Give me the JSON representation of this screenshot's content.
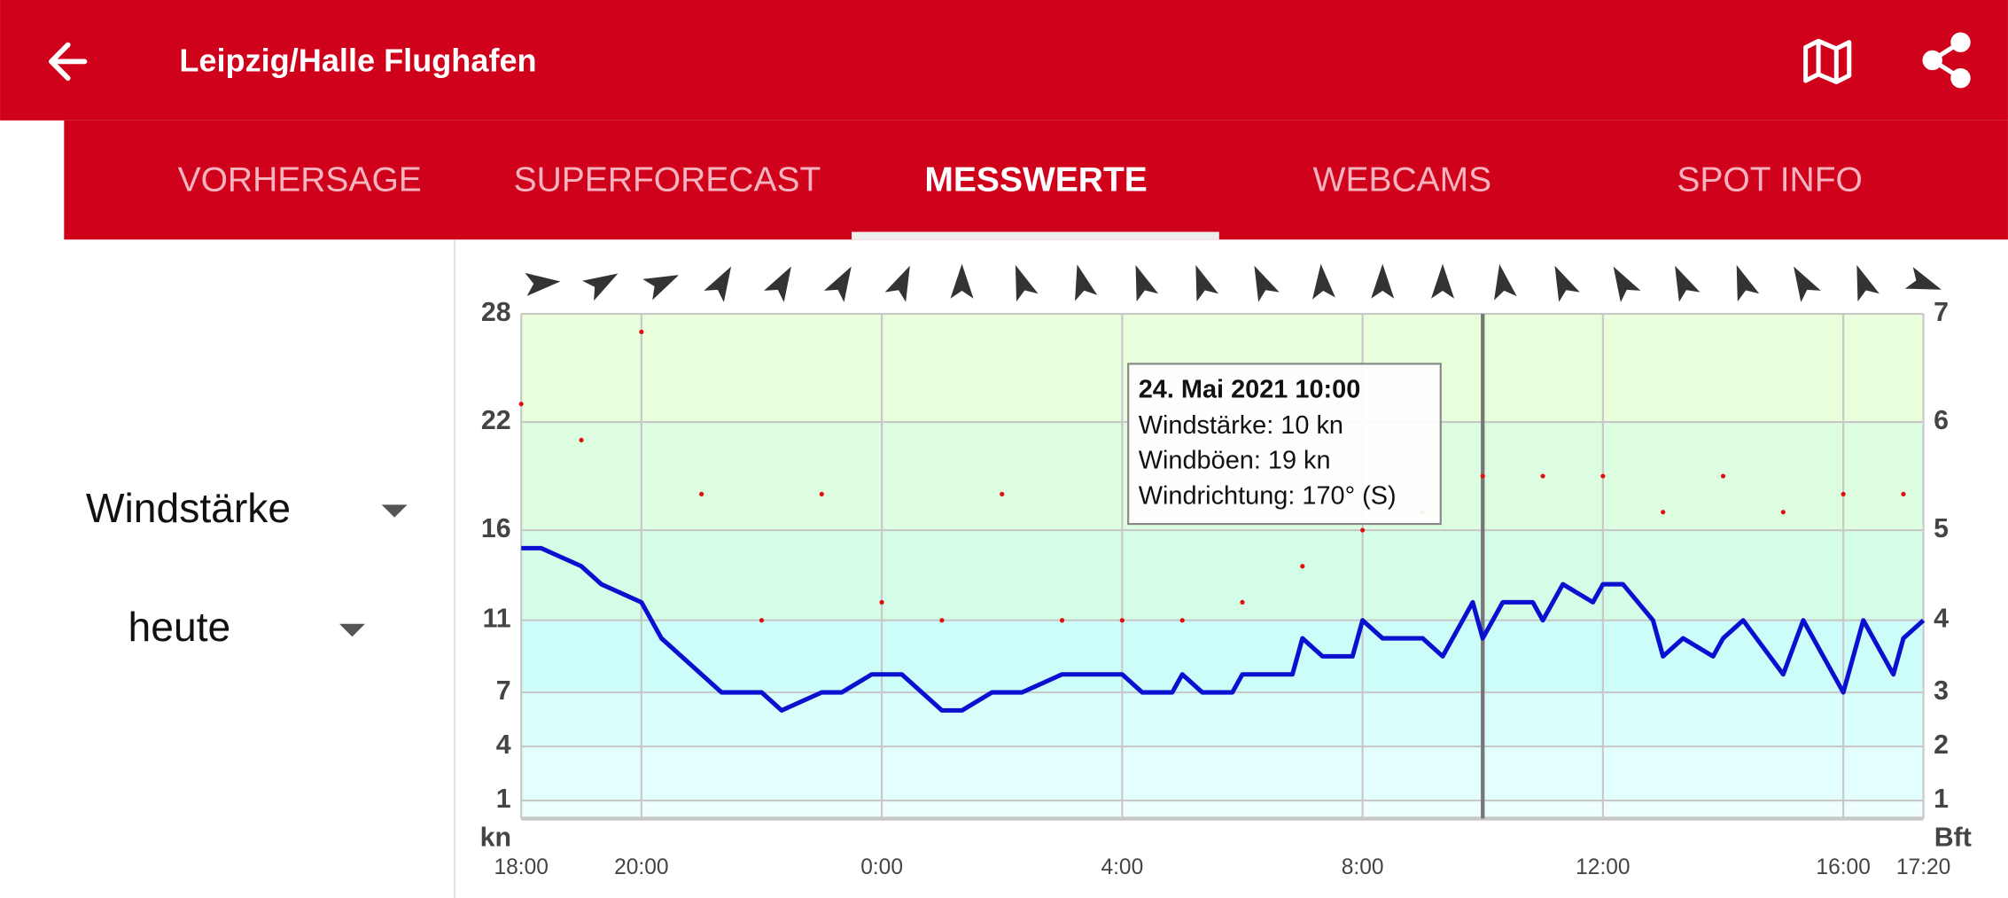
{
  "header": {
    "title": "Leipzig/Halle Flughafen"
  },
  "tabs": {
    "items": [
      "VORHERSAGE",
      "SUPERFORECAST",
      "MESSWERTE",
      "WEBCAMS",
      "SPOT INFO"
    ],
    "active": 2
  },
  "selectors": {
    "parameter": "Windstärke",
    "period": "heute"
  },
  "chart_data": {
    "type": "line",
    "y_unit": "kn",
    "y2_unit": "Bft",
    "xlim": [
      "18:00",
      "17:20"
    ],
    "xticks": [
      "18:00",
      "20:00",
      "0:00",
      "4:00",
      "8:00",
      "12:00",
      "16:00",
      "17:20"
    ],
    "ylim": [
      0,
      28
    ],
    "yticks": [
      28,
      22,
      16,
      11,
      7,
      4,
      1
    ],
    "y2ticks": [
      7,
      6,
      5,
      4,
      3,
      2,
      1
    ],
    "grid": true,
    "band_colors": [
      "#effffe",
      "#e3fffd",
      "#d8fffc",
      "#cdfdf9",
      "#d3fde6",
      "#ddfde0",
      "#e9ffdc"
    ],
    "series": [
      {
        "color": "#0a10d0",
        "style": "line",
        "x": [
          "18:00",
          "18:20",
          "19:00",
          "19:20",
          "20:00",
          "20:20",
          "21:20",
          "22:00",
          "22:20",
          "23:00",
          "23:20",
          "23:50",
          "0:20",
          "1:00",
          "1:20",
          "1:50",
          "2:20",
          "3:00",
          "4:00",
          "4:20",
          "4:50",
          "5:00",
          "5:20",
          "5:50",
          "6:00",
          "6:50",
          "7:00",
          "7:20",
          "7:50",
          "8:00",
          "8:20",
          "9:00",
          "9:20",
          "9:50",
          "10:00",
          "10:20",
          "10:50",
          "11:00",
          "11:20",
          "11:50",
          "12:00",
          "12:20",
          "12:50",
          "13:00",
          "13:20",
          "13:50",
          "14:00",
          "14:20",
          "15:00",
          "15:20",
          "16:00",
          "16:20",
          "16:50",
          "17:00",
          "17:20"
        ],
        "values": [
          15,
          15,
          14,
          13,
          12,
          10,
          7,
          7,
          6,
          7,
          7,
          8,
          8,
          6,
          6,
          7,
          7,
          8,
          8,
          7,
          7,
          8,
          7,
          7,
          8,
          8,
          10,
          9,
          9,
          11,
          10,
          10,
          9,
          12,
          10,
          12,
          12,
          11,
          13,
          12,
          13,
          13,
          11,
          9,
          10,
          9,
          10,
          11,
          8,
          11,
          7,
          11,
          8,
          10,
          11
        ]
      },
      {
        "color": "#e01010",
        "style": "dots",
        "x": [
          "18:00",
          "19:00",
          "20:00",
          "21:00",
          "22:00",
          "23:00",
          "0:00",
          "1:00",
          "2:00",
          "3:00",
          "4:00",
          "5:00",
          "6:00",
          "7:00",
          "8:00",
          "9:00",
          "10:00",
          "11:00",
          "12:00",
          "13:00",
          "14:00",
          "15:00",
          "16:00",
          "17:00"
        ],
        "values": [
          23,
          21,
          27,
          18,
          11,
          18,
          12,
          11,
          18,
          11,
          11,
          11,
          12,
          14,
          16,
          17,
          19,
          19,
          19,
          17,
          19,
          17,
          18,
          18
        ]
      }
    ],
    "directions": {
      "color": "#333333",
      "x": [
        "18:20",
        "19:20",
        "20:20",
        "21:20",
        "22:20",
        "23:20",
        "0:20",
        "1:20",
        "2:20",
        "3:20",
        "4:20",
        "5:20",
        "6:20",
        "7:20",
        "8:20",
        "9:20",
        "10:20",
        "11:20",
        "12:20",
        "13:20",
        "14:20",
        "15:20",
        "16:20",
        "17:20"
      ],
      "values": [
        265,
        240,
        245,
        210,
        210,
        210,
        205,
        180,
        160,
        165,
        160,
        160,
        155,
        175,
        180,
        180,
        170,
        155,
        150,
        155,
        160,
        150,
        160,
        290
      ]
    },
    "tooltip": {
      "title": "24. Mai 2021 10:00",
      "lines": [
        "Windstärke: 10 kn",
        "Windböen: 19 kn",
        "Windrichtung: 170° (S)"
      ]
    }
  }
}
